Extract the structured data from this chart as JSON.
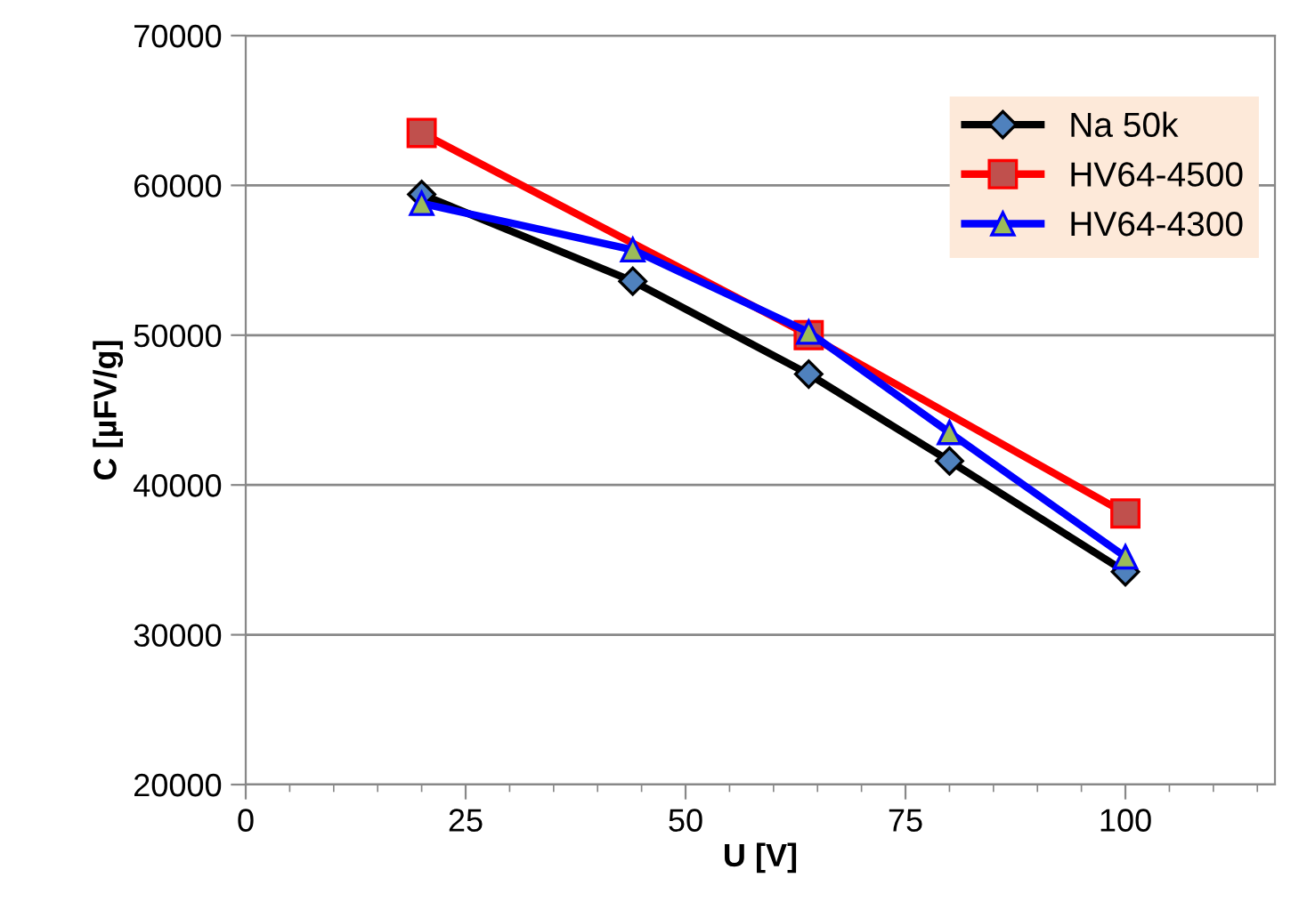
{
  "chart_data": {
    "type": "line",
    "xlabel": "U [V]",
    "ylabel": "C [µFV/g]",
    "xlim": [
      0,
      117
    ],
    "xticks": [
      0,
      25,
      50,
      75,
      100
    ],
    "ylim": [
      20000,
      70000
    ],
    "yticks": [
      20000,
      30000,
      40000,
      50000,
      60000,
      70000
    ],
    "grid": "y",
    "legend": "top right",
    "series": [
      {
        "name": "Na 50k",
        "color": "#000000",
        "marker": "diamond",
        "x": [
          20,
          44,
          64,
          80,
          100
        ],
        "values": [
          59400,
          53600,
          47400,
          41600,
          34200
        ]
      },
      {
        "name": "HV64-4500",
        "color": "#ff0000",
        "marker": "square",
        "x": [
          20,
          64,
          100
        ],
        "values": [
          63500,
          50000,
          38100
        ]
      },
      {
        "name": "HV64-4300",
        "color": "#0000ff",
        "marker": "triangle",
        "x": [
          20,
          44,
          64,
          80,
          100
        ],
        "values": [
          58800,
          55700,
          50200,
          43500,
          35200
        ]
      }
    ]
  }
}
